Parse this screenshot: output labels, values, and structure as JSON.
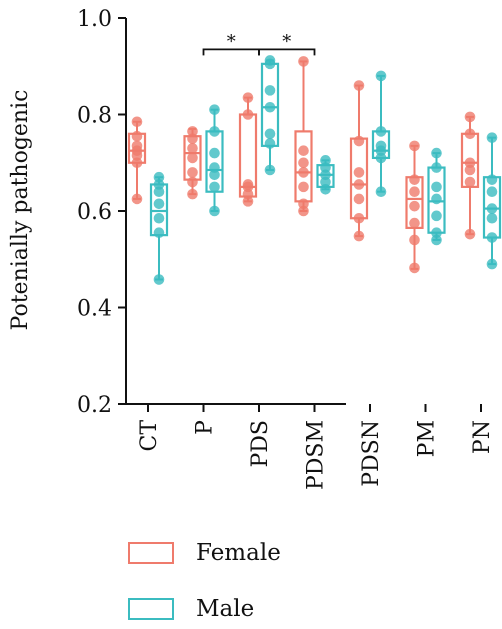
{
  "chart_data": {
    "type": "box",
    "title": "",
    "xlabel": "",
    "ylabel": "Potenially pathogenic",
    "ylim": [
      0.2,
      1.0
    ],
    "yticks": [
      "0.2",
      "0.4",
      "0.6",
      "0.8",
      "1.0"
    ],
    "categories": [
      "CT",
      "P",
      "PDS",
      "PDSM",
      "PDSN",
      "PM",
      "PN"
    ],
    "series": [
      {
        "name": "Female",
        "color": "#ef7b6c",
        "boxes": [
          {
            "min": 0.625,
            "q1": 0.7,
            "median": 0.725,
            "q3": 0.76,
            "max": 0.785,
            "points": [
              0.625,
              0.7,
              0.715,
              0.725,
              0.735,
              0.755,
              0.785
            ]
          },
          {
            "min": 0.635,
            "q1": 0.665,
            "median": 0.72,
            "q3": 0.755,
            "max": 0.77,
            "points": [
              0.635,
              0.66,
              0.68,
              0.71,
              0.73,
              0.75,
              0.765
            ]
          },
          {
            "min": 0.62,
            "q1": 0.63,
            "median": 0.65,
            "q3": 0.8,
            "max": 0.835,
            "points": [
              0.62,
              0.635,
              0.65,
              0.655,
              0.8,
              0.835
            ]
          },
          {
            "min": 0.6,
            "q1": 0.62,
            "median": 0.68,
            "q3": 0.765,
            "max": 0.91,
            "points": [
              0.6,
              0.615,
              0.65,
              0.68,
              0.7,
              0.725,
              0.91
            ]
          },
          {
            "min": 0.548,
            "q1": 0.585,
            "median": 0.655,
            "q3": 0.75,
            "max": 0.86,
            "points": [
              0.548,
              0.585,
              0.625,
              0.655,
              0.68,
              0.745,
              0.86
            ]
          },
          {
            "min": 0.48,
            "q1": 0.565,
            "median": 0.625,
            "q3": 0.67,
            "max": 0.735,
            "points": [
              0.482,
              0.54,
              0.575,
              0.61,
              0.64,
              0.665,
              0.735
            ]
          },
          {
            "min": 0.552,
            "q1": 0.65,
            "median": 0.7,
            "q3": 0.76,
            "max": 0.795,
            "points": [
              0.552,
              0.66,
              0.685,
              0.7,
              0.76,
              0.795
            ]
          }
        ]
      },
      {
        "name": "Male",
        "color": "#3bbcc0",
        "boxes": [
          {
            "min": 0.458,
            "q1": 0.55,
            "median": 0.6,
            "q3": 0.655,
            "max": 0.67,
            "points": [
              0.458,
              0.555,
              0.585,
              0.615,
              0.64,
              0.655,
              0.67
            ]
          },
          {
            "min": 0.6,
            "q1": 0.64,
            "median": 0.685,
            "q3": 0.765,
            "max": 0.81,
            "points": [
              0.6,
              0.65,
              0.675,
              0.69,
              0.72,
              0.765,
              0.81
            ]
          },
          {
            "min": 0.685,
            "q1": 0.735,
            "median": 0.815,
            "q3": 0.905,
            "max": 0.912,
            "points": [
              0.685,
              0.74,
              0.76,
              0.815,
              0.85,
              0.905,
              0.912
            ]
          },
          {
            "min": 0.645,
            "q1": 0.65,
            "median": 0.675,
            "q3": 0.695,
            "max": 0.705,
            "points": [
              0.645,
              0.66,
              0.675,
              0.69,
              0.705
            ]
          },
          {
            "min": 0.64,
            "q1": 0.71,
            "median": 0.725,
            "q3": 0.765,
            "max": 0.88,
            "points": [
              0.64,
              0.71,
              0.725,
              0.735,
              0.765,
              0.88
            ]
          },
          {
            "min": 0.54,
            "q1": 0.555,
            "median": 0.62,
            "q3": 0.69,
            "max": 0.72,
            "points": [
              0.54,
              0.555,
              0.59,
              0.625,
              0.65,
              0.69,
              0.72
            ]
          },
          {
            "min": 0.49,
            "q1": 0.545,
            "median": 0.605,
            "q3": 0.67,
            "max": 0.752,
            "points": [
              0.49,
              0.545,
              0.585,
              0.605,
              0.64,
              0.665,
              0.752
            ]
          }
        ]
      }
    ],
    "significance": [
      {
        "from": "P",
        "to": "PDS",
        "label": "*",
        "y": 0.935
      },
      {
        "from": "PDS",
        "to": "PDSM",
        "label": "*",
        "y": 0.935
      }
    ],
    "legend_position": "bottom"
  }
}
